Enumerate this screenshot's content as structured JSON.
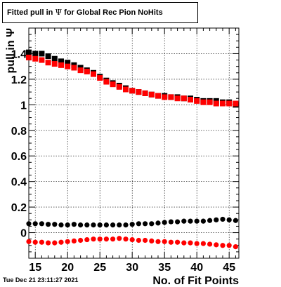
{
  "header": {
    "title_prefix": "Fitted pull in ",
    "title_symbol": "Ψ",
    "title_suffix": " for Global Rec Pion NoHits"
  },
  "footer": {
    "timestamp": "Tue Dec 21 23:11:27 2021"
  },
  "chart_data": {
    "type": "scatter",
    "xlabel": "No. of Fit Points",
    "ylabel": "pull in Ψ",
    "xlim": [
      14,
      46.5
    ],
    "ylim": [
      -0.2,
      1.6
    ],
    "grid": true,
    "xticks": [
      15,
      20,
      25,
      30,
      35,
      40,
      45
    ],
    "yticks": [
      0,
      0.2,
      0.4,
      0.6,
      0.8,
      1,
      1.2,
      1.4
    ],
    "ytick_labels": [
      "0",
      "0.2",
      "0.4",
      "0.6",
      "0.8",
      "1",
      "1.2",
      "1.4"
    ],
    "x": [
      14,
      15,
      16,
      17,
      18,
      19,
      20,
      21,
      22,
      23,
      24,
      25,
      26,
      27,
      28,
      29,
      30,
      31,
      32,
      33,
      34,
      35,
      36,
      37,
      38,
      39,
      40,
      41,
      42,
      43,
      44,
      45,
      46
    ],
    "series": [
      {
        "color": "#000000",
        "marker": "square",
        "values": [
          1.41,
          1.4,
          1.4,
          1.38,
          1.36,
          1.34,
          1.33,
          1.31,
          1.29,
          1.27,
          1.25,
          1.22,
          1.19,
          1.17,
          1.15,
          1.13,
          1.11,
          1.1,
          1.09,
          1.08,
          1.07,
          1.07,
          1.06,
          1.06,
          1.05,
          1.05,
          1.04,
          1.03,
          1.03,
          1.03,
          1.02,
          1.02,
          1.0
        ]
      },
      {
        "color": "#ff0000",
        "marker": "square",
        "values": [
          1.37,
          1.36,
          1.35,
          1.33,
          1.32,
          1.31,
          1.3,
          1.29,
          1.27,
          1.26,
          1.24,
          1.21,
          1.18,
          1.16,
          1.14,
          1.12,
          1.11,
          1.1,
          1.09,
          1.08,
          1.07,
          1.06,
          1.06,
          1.05,
          1.05,
          1.04,
          1.03,
          1.02,
          1.02,
          1.01,
          1.01,
          1.01,
          1.01
        ]
      },
      {
        "color": "#000000",
        "marker": "circle",
        "values": [
          0.07,
          0.07,
          0.07,
          0.065,
          0.065,
          0.06,
          0.06,
          0.065,
          0.06,
          0.06,
          0.06,
          0.06,
          0.06,
          0.06,
          0.06,
          0.06,
          0.065,
          0.07,
          0.07,
          0.07,
          0.075,
          0.08,
          0.085,
          0.085,
          0.09,
          0.09,
          0.09,
          0.09,
          0.095,
          0.1,
          0.105,
          0.1,
          0.095
        ]
      },
      {
        "color": "#ff0000",
        "marker": "circle",
        "values": [
          -0.07,
          -0.075,
          -0.075,
          -0.08,
          -0.08,
          -0.075,
          -0.07,
          -0.065,
          -0.06,
          -0.055,
          -0.05,
          -0.05,
          -0.05,
          -0.05,
          -0.045,
          -0.05,
          -0.055,
          -0.06,
          -0.06,
          -0.065,
          -0.07,
          -0.07,
          -0.075,
          -0.075,
          -0.08,
          -0.08,
          -0.085,
          -0.085,
          -0.09,
          -0.095,
          -0.1,
          -0.1,
          -0.11
        ]
      }
    ]
  }
}
